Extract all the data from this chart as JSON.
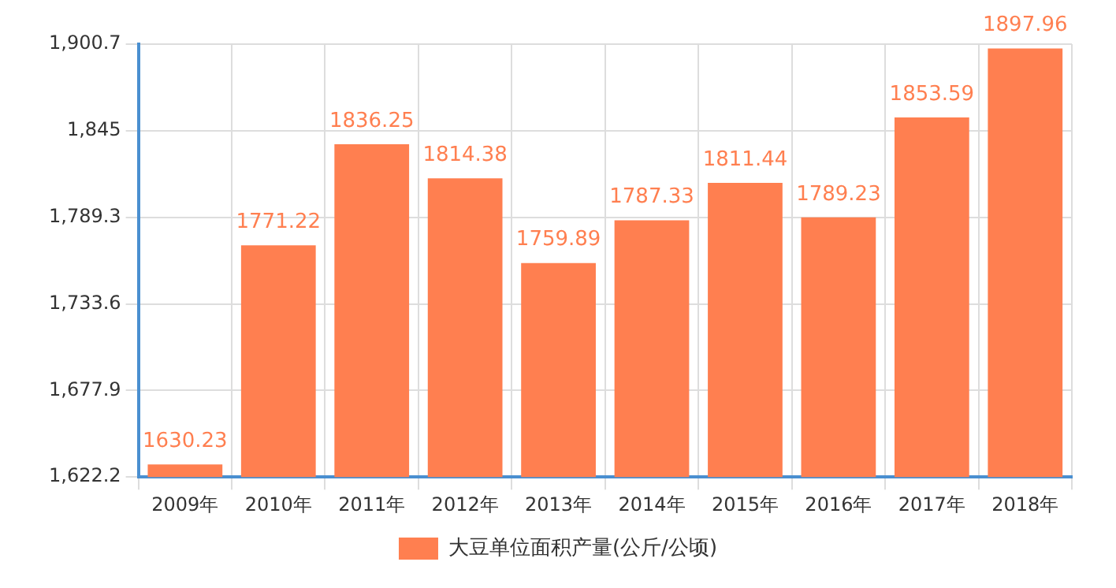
{
  "chart_data": {
    "type": "bar",
    "categories": [
      "2009年",
      "2010年",
      "2011年",
      "2012年",
      "2013年",
      "2014年",
      "2015年",
      "2016年",
      "2017年",
      "2018年"
    ],
    "series": [
      {
        "name": "大豆单位面积产量(公斤/公顷)",
        "color": "#ff7f50",
        "values": [
          1630.23,
          1771.22,
          1836.25,
          1814.38,
          1759.89,
          1787.33,
          1811.44,
          1789.23,
          1853.59,
          1897.96
        ]
      }
    ],
    "ylim": [
      1622.2,
      1900.7
    ],
    "yticks": [
      {
        "value": 1622.2,
        "label": "1,622.2"
      },
      {
        "value": 1677.9,
        "label": "1,677.9"
      },
      {
        "value": 1733.6,
        "label": "1,733.6"
      },
      {
        "value": 1789.3,
        "label": "1,789.3"
      },
      {
        "value": 1845,
        "label": "1,845"
      },
      {
        "value": 1900.7,
        "label": "1,900.7"
      }
    ],
    "grid": true,
    "legend": "bottom",
    "data_labels": true
  }
}
